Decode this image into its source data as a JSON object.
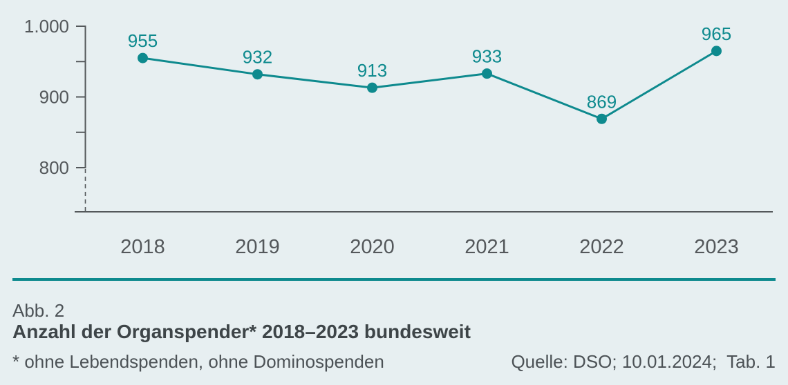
{
  "figure": {
    "caption_label": "Abb. 2",
    "title": "Anzahl der Organspender* 2018–2023 bundesweit",
    "footnote": "* ohne Lebendspenden, ohne Dominospenden",
    "source": "Quelle: DSO; 10.01.2024;  Tab. 1"
  },
  "colors": {
    "background": "#e7eff1",
    "accent_teal": "#0e8a8e",
    "axis_gray": "#54585b",
    "title_text": "#3e4548",
    "body_text": "#4c5256"
  },
  "chart_data": {
    "type": "line",
    "title": "Anzahl der Organspender* 2018–2023 bundesweit",
    "categories": [
      "2018",
      "2019",
      "2020",
      "2021",
      "2022",
      "2023"
    ],
    "values": [
      955,
      932,
      913,
      933,
      869,
      965
    ],
    "xlabel": "",
    "ylabel": "",
    "ylim": [
      800,
      1000
    ],
    "yticks": [
      {
        "value": 1000,
        "label": "1.000"
      },
      {
        "value": 950,
        "label": ""
      },
      {
        "value": 900,
        "label": "900"
      },
      {
        "value": 850,
        "label": ""
      },
      {
        "value": 800,
        "label": "800"
      }
    ],
    "grid": false,
    "legend": false,
    "point_labels_visible": true,
    "axis_break": true,
    "line_color": "#0e8a8e",
    "marker": "circle"
  }
}
